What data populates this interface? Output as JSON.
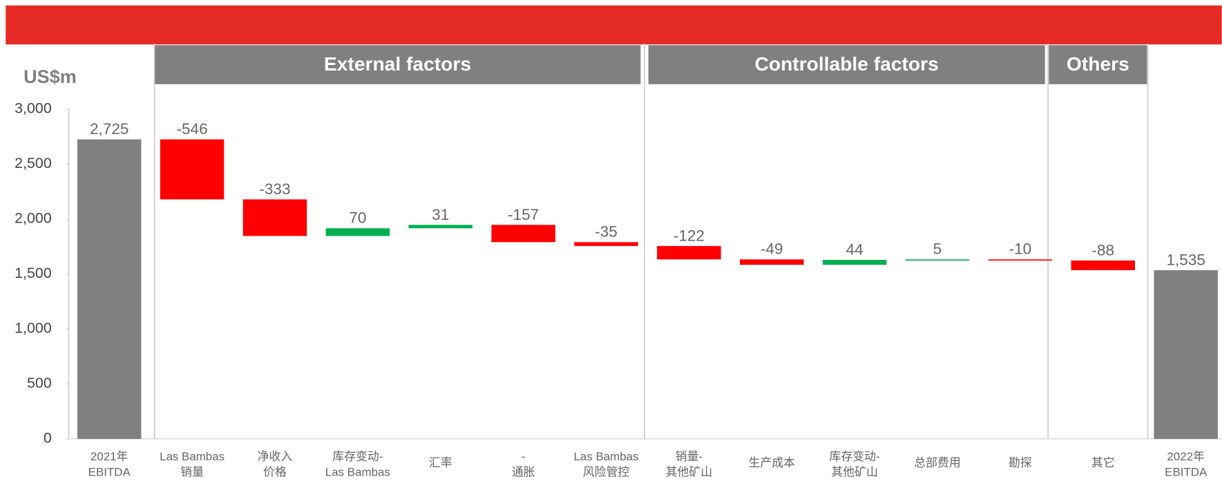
{
  "chart_data": {
    "type": "waterfall",
    "y_label": "US$m",
    "groups": [
      "External factors",
      "Controllable factors",
      "Others"
    ],
    "categories": [
      [
        "2021年",
        "EBITDA"
      ],
      [
        "Las Bambas",
        "销量"
      ],
      [
        "净收入",
        "价格"
      ],
      [
        "库存变动-",
        "Las Bambas"
      ],
      [
        "汇率"
      ],
      [
        "-",
        "通胀"
      ],
      [
        "Las Bambas",
        "风险管控"
      ],
      [
        "销量-",
        "其他矿山"
      ],
      [
        "生产成本"
      ],
      [
        "库存变动-",
        "其他矿山"
      ],
      [
        "总部费用"
      ],
      [
        "勘探"
      ],
      [
        "其它"
      ],
      [
        "2022年",
        "EBITDA"
      ]
    ],
    "values": [
      2725,
      -546,
      -333,
      70,
      31,
      -157,
      -35,
      -122,
      -49,
      44,
      5,
      -10,
      -88,
      1535
    ],
    "value_labels": [
      "2,725",
      "-546",
      "-333",
      "70",
      "31",
      "-157",
      "-35",
      "-122",
      "-49",
      "44",
      "5",
      "-10",
      "-88",
      "1,535"
    ],
    "colors": {
      "total": "#808080",
      "decrease": "#ff0000",
      "increase": "#00b050"
    },
    "ylim": [
      0,
      3000
    ],
    "yticks": [
      0,
      500,
      {
        "value": 1000,
        "label": "1,000"
      },
      {
        "value": 1500,
        "label": "1,500"
      },
      {
        "value": 2000,
        "label": "2,000"
      },
      {
        "value": 2500,
        "label": "2,500"
      },
      {
        "value": 3000,
        "label": "3,000"
      }
    ]
  }
}
